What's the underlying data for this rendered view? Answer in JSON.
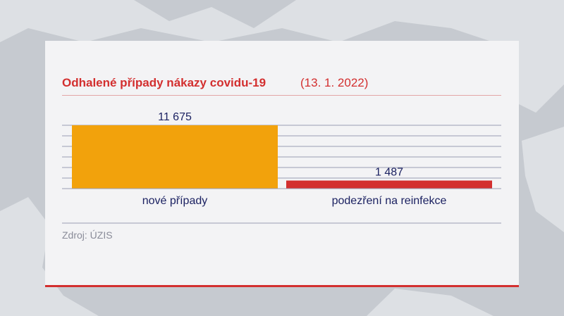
{
  "header": {
    "title": "Odhalené případy nákazy covidu-19",
    "date": "(13. 1. 2022)"
  },
  "chart_data": {
    "type": "bar",
    "categories": [
      "nové případy",
      "podezření na reinfekce"
    ],
    "values": [
      11675,
      1487
    ],
    "value_labels": [
      "11 675",
      "1 487"
    ],
    "colors": [
      "#f2a20c",
      "#d32f2f"
    ],
    "ylim": [
      0,
      11675
    ],
    "grid": true,
    "xlabel": "",
    "ylabel": ""
  },
  "footer": {
    "source": "Zdroj: ÚZIS"
  }
}
